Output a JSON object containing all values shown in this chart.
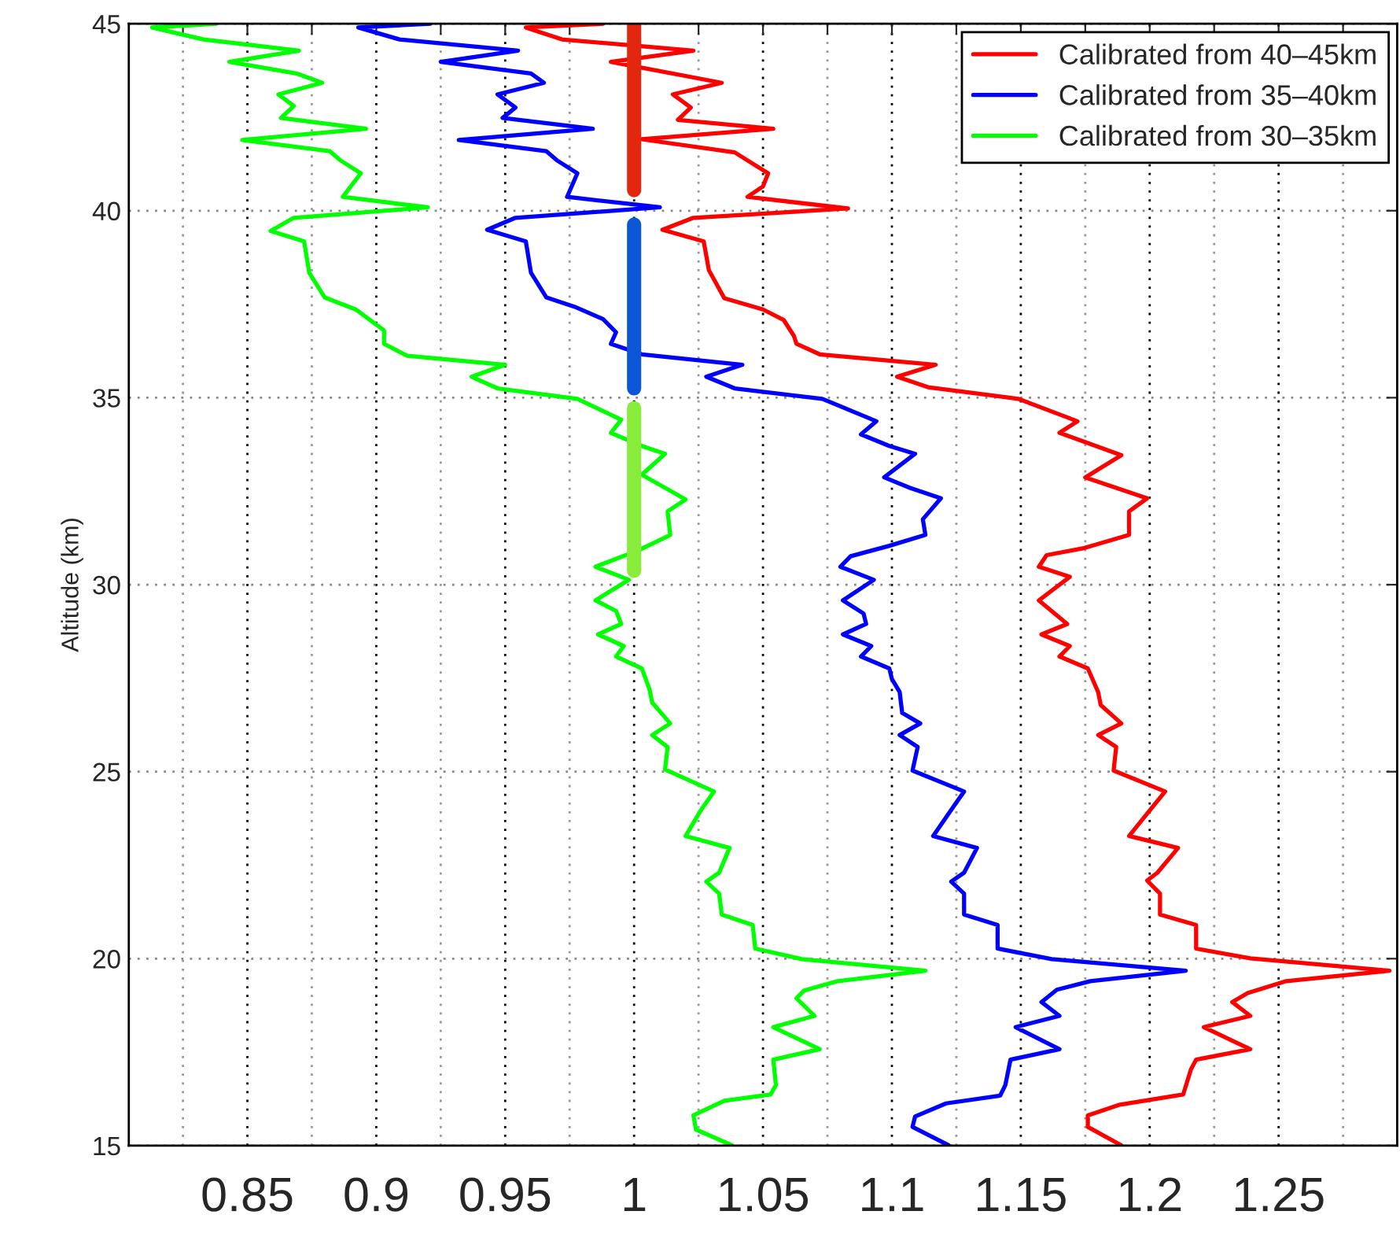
{
  "chart_data": {
    "type": "line",
    "ylabel": "Altitude (km)",
    "xlim": [
      0.804,
      1.296
    ],
    "ylim": [
      15,
      45
    ],
    "xticks": [
      {
        "value": 0.825,
        "label": null
      },
      0.85,
      {
        "value": 0.875,
        "label": null
      },
      0.9,
      {
        "value": 0.925,
        "label": null
      },
      0.95,
      {
        "value": 0.975,
        "label": null
      },
      1,
      {
        "value": 1.025,
        "label": null
      },
      1.05,
      {
        "value": 1.075,
        "label": null
      },
      1.1,
      {
        "value": 1.125,
        "label": null
      },
      1.15,
      {
        "value": 1.175,
        "label": null
      },
      1.2,
      {
        "value": 1.225,
        "label": null
      },
      1.25,
      {
        "value": 1.275,
        "label": null
      }
    ],
    "yticks": [
      15,
      20,
      25,
      30,
      35,
      40,
      45
    ],
    "grid": true,
    "legend": "top right",
    "line_style": "solid",
    "marker": "none",
    "series": [
      {
        "name": "Calibrated from 40–45km",
        "color": "#ff0000",
        "x": [
          0.988,
          0.958,
          0.972,
          1.023,
          0.991,
          1.034,
          1.015,
          1.022,
          1.017,
          1.054,
          1.003,
          1.039,
          1.052,
          1.05,
          1.044,
          1.083,
          1.023,
          1.011,
          1.027,
          1.029,
          1.035,
          1.05,
          1.058,
          1.062,
          1.063,
          1.072,
          1.117,
          1.102,
          1.114,
          1.149,
          1.172,
          1.165,
          1.189,
          1.175,
          1.199,
          1.192,
          1.192,
          1.174,
          1.16,
          1.157,
          1.169,
          1.157,
          1.168,
          1.158,
          1.169,
          1.165,
          1.176,
          1.18,
          1.181,
          1.189,
          1.18,
          1.187,
          1.186,
          1.206,
          1.201,
          1.192,
          1.211,
          1.203,
          1.199,
          1.204,
          1.204,
          1.218,
          1.218,
          1.239,
          1.293,
          1.253,
          1.238,
          1.232,
          1.239,
          1.221,
          1.239,
          1.218,
          1.216,
          1.213,
          1.188,
          1.176,
          1.176,
          1.189
        ],
        "values": [
          45.0,
          44.9,
          44.58,
          44.28,
          43.98,
          43.42,
          43.11,
          42.76,
          42.43,
          42.19,
          41.91,
          41.56,
          41.0,
          40.65,
          40.37,
          40.06,
          39.81,
          39.49,
          39.18,
          38.41,
          37.66,
          37.36,
          37.08,
          36.65,
          36.44,
          36.16,
          35.88,
          35.56,
          35.28,
          34.97,
          34.37,
          34.06,
          33.46,
          32.87,
          32.31,
          31.96,
          31.33,
          30.97,
          30.79,
          30.48,
          30.21,
          29.58,
          28.95,
          28.67,
          28.36,
          28.08,
          27.76,
          27.13,
          26.78,
          26.29,
          25.98,
          25.66,
          25.03,
          24.47,
          24.05,
          23.28,
          22.96,
          22.3,
          22.09,
          21.74,
          21.18,
          20.9,
          20.27,
          20.01,
          19.68,
          19.4,
          19.08,
          18.84,
          18.47,
          18.17,
          17.58,
          17.3,
          17.04,
          16.37,
          16.09,
          15.81,
          15.5,
          15.01
        ]
      },
      {
        "name": "Calibrated from 35–40km",
        "color": "#0000ff",
        "x": [
          0.921,
          0.893,
          0.909,
          0.955,
          0.925,
          0.96,
          0.965,
          0.947,
          0.954,
          0.949,
          0.984,
          0.932,
          0.966,
          0.97,
          0.978,
          0.974,
          1.01,
          0.954,
          0.943,
          0.958,
          0.96,
          0.966,
          0.977,
          0.988,
          0.993,
          0.991,
          1.003,
          1.042,
          1.028,
          1.039,
          1.073,
          1.094,
          1.088,
          1.099,
          1.109,
          1.097,
          1.107,
          1.119,
          1.112,
          1.113,
          1.099,
          1.084,
          1.08,
          1.093,
          1.081,
          1.089,
          1.09,
          1.081,
          1.092,
          1.088,
          1.099,
          1.1,
          1.103,
          1.104,
          1.111,
          1.103,
          1.11,
          1.108,
          1.128,
          1.123,
          1.116,
          1.133,
          1.128,
          1.123,
          1.128,
          1.128,
          1.141,
          1.141,
          1.162,
          1.214,
          1.177,
          1.164,
          1.158,
          1.165,
          1.148,
          1.165,
          1.146,
          1.144,
          1.142,
          1.121,
          1.109,
          1.108,
          1.122
        ],
        "values": [
          45.0,
          44.9,
          44.58,
          44.28,
          43.98,
          43.67,
          43.42,
          43.11,
          42.76,
          42.48,
          42.19,
          41.89,
          41.59,
          41.35,
          41.0,
          40.37,
          40.09,
          39.81,
          39.49,
          39.18,
          38.34,
          37.68,
          37.43,
          37.1,
          36.75,
          36.44,
          36.16,
          35.88,
          35.56,
          35.25,
          34.97,
          34.37,
          34.02,
          33.71,
          33.5,
          32.87,
          32.59,
          32.31,
          31.75,
          31.33,
          31.04,
          30.76,
          30.48,
          30.13,
          29.58,
          29.23,
          28.95,
          28.67,
          28.36,
          28.08,
          27.76,
          27.48,
          27.13,
          26.57,
          26.29,
          25.98,
          25.66,
          25.03,
          24.47,
          23.98,
          23.28,
          22.96,
          22.3,
          22.06,
          21.74,
          21.18,
          20.9,
          20.27,
          19.99,
          19.68,
          19.4,
          19.17,
          18.84,
          18.47,
          18.17,
          17.58,
          17.3,
          16.62,
          16.34,
          16.13,
          15.78,
          15.5,
          15.01
        ]
      },
      {
        "name": "Calibrated from 30–35km",
        "color": "#00ff00",
        "x": [
          0.838,
          0.813,
          0.833,
          0.87,
          0.843,
          0.869,
          0.879,
          0.862,
          0.868,
          0.863,
          0.896,
          0.848,
          0.882,
          0.886,
          0.894,
          0.887,
          0.92,
          0.868,
          0.859,
          0.872,
          0.874,
          0.88,
          0.892,
          0.903,
          0.903,
          0.912,
          0.95,
          0.937,
          0.947,
          0.978,
          0.995,
          0.991,
          1.003,
          1.012,
          1.003,
          1.02,
          1.013,
          1.014,
          1.002,
          0.985,
          0.998,
          0.985,
          0.993,
          0.995,
          0.986,
          0.996,
          0.993,
          1.003,
          1.006,
          1.007,
          1.014,
          1.007,
          1.013,
          1.012,
          1.031,
          1.026,
          1.02,
          1.037,
          1.033,
          1.028,
          1.033,
          1.034,
          1.046,
          1.047,
          1.065,
          1.113,
          1.079,
          1.066,
          1.063,
          1.07,
          1.054,
          1.072,
          1.054,
          1.055,
          1.053,
          1.035,
          1.023,
          1.024,
          1.038
        ],
        "values": [
          45.0,
          44.9,
          44.58,
          44.28,
          43.98,
          43.67,
          43.42,
          43.11,
          42.8,
          42.48,
          42.19,
          41.89,
          41.59,
          41.35,
          41.0,
          40.37,
          40.09,
          39.81,
          39.46,
          39.18,
          38.34,
          37.68,
          37.36,
          36.8,
          36.44,
          36.12,
          35.88,
          35.56,
          35.25,
          34.97,
          34.41,
          34.06,
          33.71,
          33.5,
          32.94,
          32.28,
          31.96,
          31.33,
          30.93,
          30.48,
          30.13,
          29.58,
          29.3,
          28.95,
          28.67,
          28.36,
          28.08,
          27.76,
          27.2,
          26.85,
          26.29,
          25.98,
          25.66,
          25.06,
          24.47,
          23.98,
          23.28,
          22.96,
          22.3,
          22.06,
          21.74,
          21.18,
          20.9,
          20.27,
          19.99,
          19.68,
          19.4,
          19.15,
          18.94,
          18.47,
          18.17,
          17.58,
          17.3,
          16.62,
          16.37,
          16.2,
          15.81,
          15.43,
          15.01
        ]
      },
      {
        "color": "#e3260e",
        "x": [
          1,
          1
        ],
        "values": [
          40.55,
          45.0
        ]
      },
      {
        "color": "#0a56d6",
        "x": [
          1,
          1
        ],
        "values": [
          35.25,
          39.63
        ]
      },
      {
        "color": "#88ec3a",
        "x": [
          1,
          1
        ],
        "values": [
          30.37,
          34.72
        ]
      }
    ]
  }
}
